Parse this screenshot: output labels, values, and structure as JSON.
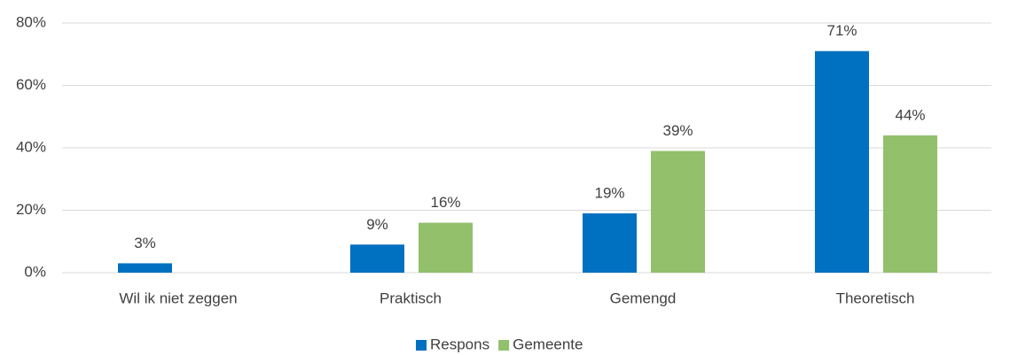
{
  "chart_data": {
    "type": "bar",
    "categories": [
      "Wil ik niet zeggen",
      "Praktisch",
      "Gemengd",
      "Theoretisch"
    ],
    "series": [
      {
        "name": "Respons",
        "color": "#0070c0",
        "values": [
          3,
          9,
          19,
          71
        ],
        "value_labels": [
          "3%",
          "9%",
          "19%",
          "71%"
        ]
      },
      {
        "name": "Gemeente",
        "color": "#92c06b",
        "values": [
          null,
          16,
          39,
          44
        ],
        "value_labels": [
          null,
          "16%",
          "39%",
          "44%"
        ]
      }
    ],
    "ylim": [
      0,
      80
    ],
    "yticks": [
      {
        "value": 0,
        "label": "0%"
      },
      {
        "value": 20,
        "label": "20%"
      },
      {
        "value": 40,
        "label": "40%"
      },
      {
        "value": 60,
        "label": "60%"
      },
      {
        "value": 80,
        "label": "80%"
      }
    ],
    "grid": true,
    "legend": "bottom"
  }
}
